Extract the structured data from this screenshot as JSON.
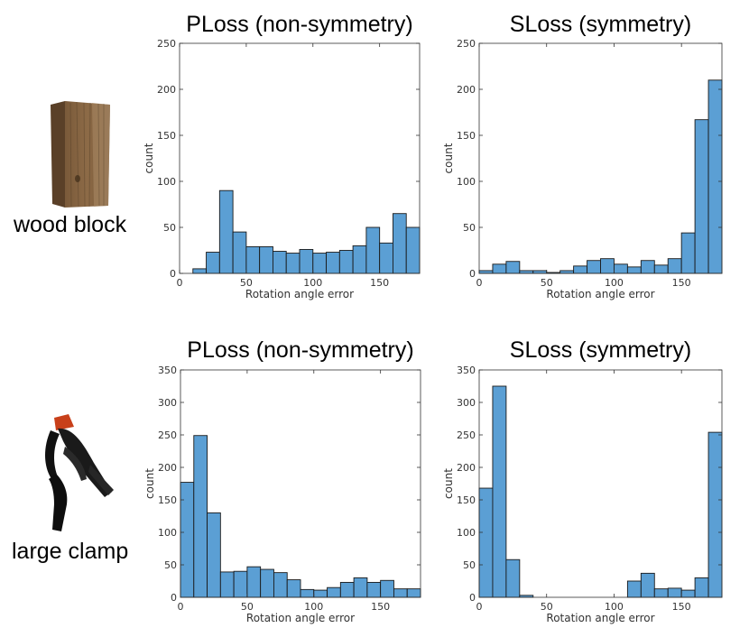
{
  "objects": [
    {
      "name": "wood block",
      "label_text": "wood block"
    },
    {
      "name": "large clamp",
      "label_text": "large clamp"
    }
  ],
  "colors": {
    "bar_fill": "#5b9fd4",
    "bar_edge": "#1a1a1a",
    "axis": "#333333"
  },
  "chart_data": [
    {
      "type": "bar",
      "title": "PLoss (non-symmetry)",
      "xlabel": "Rotation angle error",
      "ylabel": "count",
      "bin_width": 10,
      "xlim": [
        0,
        180
      ],
      "ylim": [
        0,
        250
      ],
      "xticks": [
        0,
        50,
        100,
        150
      ],
      "yticks": [
        0,
        50,
        100,
        150,
        200,
        250
      ],
      "bins_start": [
        0,
        10,
        20,
        30,
        40,
        50,
        60,
        70,
        80,
        90,
        100,
        110,
        120,
        130,
        140,
        150,
        160,
        170
      ],
      "values": [
        0,
        5,
        23,
        90,
        45,
        29,
        29,
        24,
        22,
        26,
        22,
        23,
        25,
        30,
        50,
        33,
        65,
        50
      ]
    },
    {
      "type": "bar",
      "title": "SLoss (symmetry)",
      "xlabel": "Rotation angle error",
      "ylabel": "count",
      "bin_width": 10,
      "xlim": [
        0,
        180
      ],
      "ylim": [
        0,
        250
      ],
      "xticks": [
        0,
        50,
        100,
        150
      ],
      "yticks": [
        0,
        50,
        100,
        150,
        200,
        250
      ],
      "bins_start": [
        0,
        10,
        20,
        30,
        40,
        50,
        60,
        70,
        80,
        90,
        100,
        110,
        120,
        130,
        140,
        150,
        160,
        170
      ],
      "values": [
        3,
        10,
        13,
        3,
        3,
        1,
        3,
        8,
        14,
        16,
        10,
        7,
        14,
        9,
        16,
        44,
        167,
        210
      ]
    },
    {
      "type": "bar",
      "title": "PLoss (non-symmetry)",
      "xlabel": "Rotation angle error",
      "ylabel": "count",
      "bin_width": 10,
      "xlim": [
        0,
        180
      ],
      "ylim": [
        0,
        350
      ],
      "xticks": [
        0,
        50,
        100,
        150
      ],
      "yticks": [
        0,
        50,
        100,
        150,
        200,
        250,
        300,
        350
      ],
      "bins_start": [
        0,
        10,
        20,
        30,
        40,
        50,
        60,
        70,
        80,
        90,
        100,
        110,
        120,
        130,
        140,
        150,
        160,
        170
      ],
      "values": [
        177,
        249,
        130,
        39,
        40,
        47,
        43,
        38,
        27,
        12,
        11,
        15,
        23,
        30,
        23,
        26,
        13,
        13
      ]
    },
    {
      "type": "bar",
      "title": "SLoss (symmetry)",
      "xlabel": "Rotation angle error",
      "ylabel": "count",
      "bin_width": 10,
      "xlim": [
        0,
        180
      ],
      "ylim": [
        0,
        350
      ],
      "xticks": [
        0,
        50,
        100,
        150
      ],
      "yticks": [
        0,
        50,
        100,
        150,
        200,
        250,
        300,
        350
      ],
      "bins_start": [
        0,
        10,
        20,
        30,
        40,
        50,
        60,
        70,
        80,
        90,
        100,
        110,
        120,
        130,
        140,
        150,
        160,
        170
      ],
      "values": [
        168,
        325,
        58,
        3,
        0,
        0,
        0,
        0,
        0,
        0,
        0,
        25,
        37,
        13,
        14,
        11,
        30,
        254
      ]
    }
  ]
}
